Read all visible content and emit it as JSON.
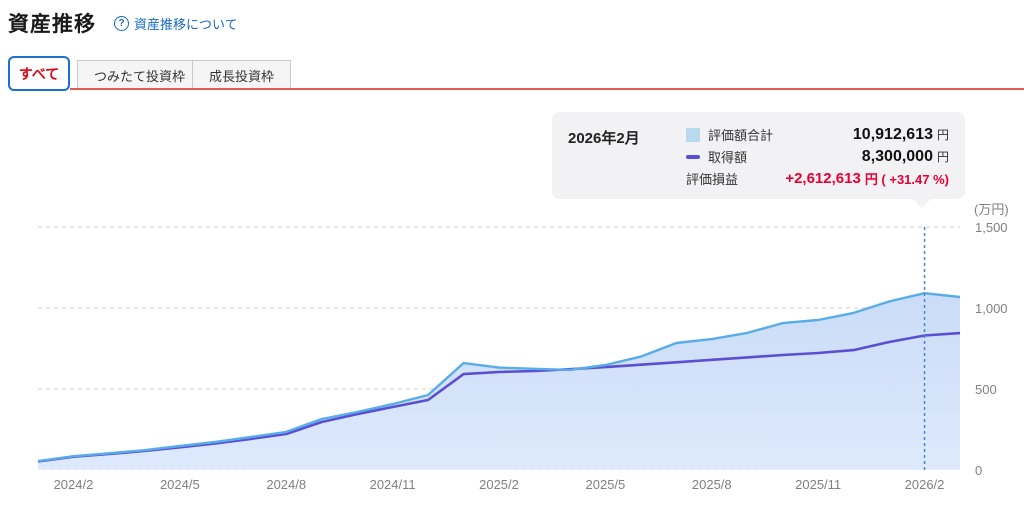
{
  "header": {
    "title": "資産推移",
    "help_link": "資産推移について",
    "help_icon_glyph": "?"
  },
  "tabs": [
    {
      "label": "すべて",
      "active": true
    },
    {
      "label": "つみたて投資枠",
      "active": false
    },
    {
      "label": "成長投資枠",
      "active": false
    }
  ],
  "tooltip": {
    "date": "2026年2月",
    "rows": [
      {
        "label": "評価額合計",
        "swatch": "area-swatch",
        "value": "10,912,613",
        "unit": "円"
      },
      {
        "label": "取得額",
        "swatch": "line-swatch",
        "value": "8,300,000",
        "unit": "円"
      },
      {
        "label": "評価損益",
        "swatch": "none",
        "value": "+2,612,613",
        "unit": "円 ( +31.47 %)",
        "highlight": true
      }
    ]
  },
  "axis": {
    "unit_label": "(万円)",
    "y_ticks": [
      "1,500",
      "1,000",
      "500",
      "0"
    ],
    "y_tick_values": [
      1500,
      1000,
      500,
      0
    ],
    "x_ticks": [
      "2024/2",
      "2024/5",
      "2024/8",
      "2024/11",
      "2025/2",
      "2025/5",
      "2025/8",
      "2025/11",
      "2026/2"
    ]
  },
  "chart_data": {
    "type": "area",
    "title": "資産推移 (すべて)",
    "ylabel": "(万円)",
    "ylim": [
      0,
      1500
    ],
    "grid": "horizontal-dashed",
    "legend_position": "tooltip",
    "x": [
      "2024/1",
      "2024/2",
      "2024/3",
      "2024/4",
      "2024/5",
      "2024/6",
      "2024/7",
      "2024/8",
      "2024/9",
      "2024/10",
      "2024/11",
      "2024/12",
      "2025/1",
      "2025/2",
      "2025/3",
      "2025/4",
      "2025/5",
      "2025/6",
      "2025/7",
      "2025/8",
      "2025/9",
      "2025/10",
      "2025/11",
      "2025/12",
      "2026/1",
      "2026/2",
      "2026/3"
    ],
    "series": [
      {
        "name": "評価額合計",
        "style": "area",
        "values": [
          55,
          85,
          103,
          122,
          148,
          173,
          204,
          235,
          315,
          358,
          407,
          463,
          660,
          632,
          625,
          618,
          648,
          700,
          784,
          808,
          846,
          907,
          926,
          970,
          1040,
          1091.2613,
          1068
        ]
      },
      {
        "name": "取得額",
        "style": "line",
        "values": [
          53,
          82,
          99,
          117,
          140,
          164,
          192,
          222,
          296,
          345,
          389,
          432,
          592,
          605,
          611,
          622,
          635,
          650,
          665,
          680,
          695,
          710,
          722,
          740,
          790,
          830,
          845
        ]
      }
    ],
    "highlight_x": "2026/2",
    "highlight_values": {
      "評価額合計_円": "10,912,613",
      "取得額_円": "8,300,000",
      "評価損益_円": "+2,612,613",
      "評価損益_pct": "+31.47 %"
    }
  },
  "colors": {
    "accent_red_text": "#dd0615",
    "tab_underline_red": "#e25a50",
    "link_blue": "#1668c7",
    "area_line": "#58ace8",
    "area_fill_top": "#c7daf7",
    "area_fill_bottom": "#dcE8fc",
    "acquisition_line": "#5a4fd2",
    "gain_loss_red": "#e60033",
    "tooltip_bg": "#f2f2f4",
    "axis_text": "#808080",
    "grid_line": "#cfcfcf",
    "highlight_vline": "#4a86c8",
    "legend_area_swatch": "#b9d9ee"
  }
}
